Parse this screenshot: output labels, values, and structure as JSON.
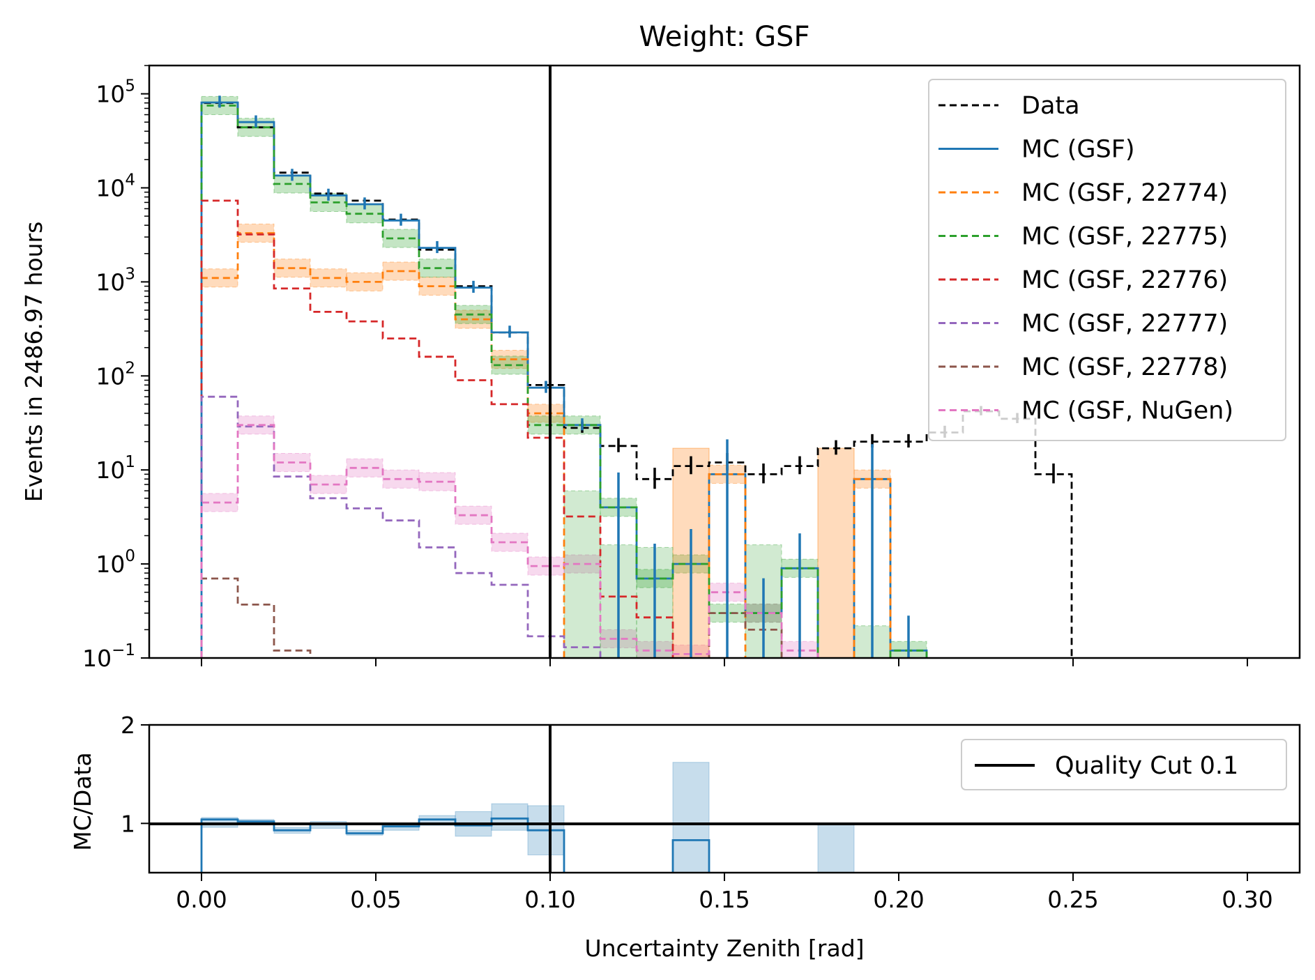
{
  "title": "Weight: GSF",
  "chart_data": [
    {
      "type": "line",
      "subtype": "step histogram",
      "title": "Weight: GSF",
      "ylabel": "Events in 2486.97 hours",
      "xlabel": "",
      "yscale": "log",
      "xlim": [
        -0.015,
        0.315
      ],
      "ylim": [
        0.1,
        200000
      ],
      "grid": false,
      "legend_position": "top-right",
      "x_ticks": [
        "0.00",
        "0.05",
        "0.10",
        "0.15",
        "0.20",
        "0.25",
        "0.30"
      ],
      "y_ticks": [
        {
          "base": "10",
          "exp": "−1"
        },
        {
          "base": "10",
          "exp": "0"
        },
        {
          "base": "10",
          "exp": "1"
        },
        {
          "base": "10",
          "exp": "2"
        },
        {
          "base": "10",
          "exp": "3"
        },
        {
          "base": "10",
          "exp": "4"
        },
        {
          "base": "10",
          "exp": "5"
        }
      ],
      "bin_edges": [
        0.0,
        0.0104,
        0.0208,
        0.0312,
        0.0416,
        0.052,
        0.0624,
        0.0728,
        0.0832,
        0.0936,
        0.104,
        0.1144,
        0.1248,
        0.1352,
        0.1456,
        0.156,
        0.1664,
        0.1768,
        0.1872,
        0.1976,
        0.208,
        0.2184,
        0.2288,
        0.2392,
        0.2496
      ],
      "vline": {
        "x": 0.1
      },
      "series": [
        {
          "name": "Data",
          "style": "dashed",
          "color": "#000000",
          "values": [
            80000,
            44000,
            14500,
            8700,
            7300,
            4600,
            2200,
            900,
            290,
            80,
            28,
            18,
            8,
            11,
            12,
            9,
            11,
            17,
            20,
            20,
            25,
            42,
            35,
            9
          ],
          "errorbars": true
        },
        {
          "name": "MC (GSF)",
          "style": "solid",
          "color": "#1f77b4",
          "values": [
            81000,
            50000,
            13500,
            8300,
            6700,
            4500,
            2300,
            870,
            290,
            75,
            30,
            4,
            0.7,
            1.0,
            9,
            0.3,
            0.9,
            null,
            8,
            0.12,
            null,
            null,
            null,
            null
          ],
          "errorbars": true
        },
        {
          "name": "MC (GSF, 22774)",
          "style": "dashed",
          "color": "#ff7f0e",
          "values": [
            1100,
            3300,
            1400,
            1100,
            1000,
            1300,
            900,
            400,
            150,
            40,
            null,
            null,
            null,
            null,
            9,
            null,
            null,
            null,
            8,
            null,
            null,
            null,
            null,
            null
          ],
          "band": true
        },
        {
          "name": "MC (GSF, 22775)",
          "style": "dashed",
          "color": "#2ca02c",
          "values": [
            75000,
            44000,
            11000,
            7000,
            5300,
            2900,
            1400,
            450,
            130,
            30,
            30,
            4,
            0.7,
            1.0,
            0.3,
            0.3,
            0.9,
            null,
            null,
            0.12,
            null,
            null,
            null,
            null
          ],
          "band": true
        },
        {
          "name": "MC (GSF, 22776)",
          "style": "dashed",
          "color": "#d62728",
          "values": [
            7300,
            3200,
            850,
            480,
            380,
            250,
            160,
            90,
            50,
            22,
            3.2,
            0.45,
            0.27,
            null,
            null,
            null,
            null,
            null,
            null,
            null,
            null,
            null,
            null,
            null
          ]
        },
        {
          "name": "MC (GSF, 22777)",
          "style": "dashed",
          "color": "#9467bd",
          "values": [
            60,
            29,
            8.5,
            5,
            3.9,
            2.9,
            1.5,
            0.8,
            0.6,
            0.17,
            0.13,
            null,
            null,
            null,
            null,
            null,
            null,
            null,
            null,
            null,
            null,
            null,
            null,
            null
          ]
        },
        {
          "name": "MC (GSF, 22778)",
          "style": "dashed",
          "color": "#8c564b",
          "values": [
            0.7,
            0.37,
            0.12,
            null,
            null,
            null,
            null,
            null,
            null,
            null,
            null,
            null,
            null,
            null,
            0.3,
            0.2,
            null,
            null,
            null,
            null,
            null,
            null,
            null,
            null
          ]
        },
        {
          "name": "MC (GSF, NuGen)",
          "style": "dashed",
          "color": "#e377c2",
          "values": [
            4.5,
            30,
            12,
            7,
            10.5,
            8,
            7.5,
            3.3,
            1.7,
            0.95,
            1.0,
            0.16,
            0.12,
            0.11,
            0.5,
            0.3,
            0.12,
            null,
            null,
            null,
            null,
            null,
            null,
            null
          ],
          "band": true
        }
      ]
    },
    {
      "type": "line",
      "subtype": "ratio step histogram",
      "xlabel": "Uncertainty Zenith [rad]",
      "ylabel": "MC/Data",
      "ylim": [
        0.5,
        2
      ],
      "y_ticks": [
        "1",
        "2"
      ],
      "hline": {
        "y": 1,
        "name": "Quality Cut 0.1"
      },
      "vline": {
        "x": 0.1
      },
      "legend_position": "top-right",
      "series": [
        {
          "name": "MC (GSF)",
          "color": "#1f77b4",
          "values": [
            1.04,
            1.02,
            0.93,
            0.99,
            0.9,
            0.97,
            1.04,
            0.98,
            1.05,
            0.93,
            null,
            null,
            null,
            0.83,
            null,
            null,
            null,
            null,
            null,
            null,
            null,
            null,
            null,
            null
          ],
          "band_low": [
            0.96,
            1.0,
            0.9,
            0.95,
            0.88,
            0.93,
            0.98,
            0.87,
            0.93,
            0.68,
            null,
            null,
            null,
            0.0,
            null,
            null,
            null,
            0.0,
            null,
            null,
            null,
            null,
            null,
            null
          ],
          "band_high": [
            1.06,
            1.04,
            0.96,
            1.02,
            0.93,
            1.0,
            1.08,
            1.12,
            1.2,
            1.18,
            null,
            null,
            null,
            1.62,
            null,
            null,
            null,
            1.0,
            null,
            null,
            null,
            null,
            null,
            null
          ]
        }
      ]
    }
  ]
}
